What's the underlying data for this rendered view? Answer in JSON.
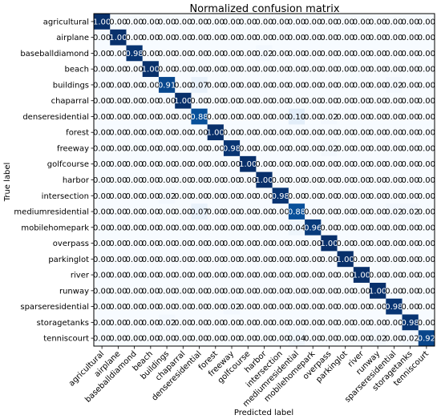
{
  "chart_data": {
    "type": "heatmap",
    "title": "Normalized confusion matrix",
    "xlabel": "Predicted label",
    "ylabel": "True label",
    "classes": [
      "agricultural",
      "airplane",
      "baseballdiamond",
      "beach",
      "buildings",
      "chaparral",
      "denseresidential",
      "forest",
      "freeway",
      "golfcourse",
      "harbor",
      "intersection",
      "mediumresidential",
      "mobilehomepark",
      "overpass",
      "parkinglot",
      "river",
      "runway",
      "sparseresidential",
      "storagetanks",
      "tenniscourt"
    ],
    "value_range": [
      0,
      1
    ],
    "colormap": "Blues",
    "matrix": [
      [
        1.0,
        0.0,
        0.0,
        0.0,
        0.0,
        0.0,
        0.0,
        0.0,
        0.0,
        0.0,
        0.0,
        0.0,
        0.0,
        0.0,
        0.0,
        0.0,
        0.0,
        0.0,
        0.0,
        0.0,
        0.0
      ],
      [
        0.0,
        1.0,
        0.0,
        0.0,
        0.0,
        0.0,
        0.0,
        0.0,
        0.0,
        0.0,
        0.0,
        0.0,
        0.0,
        0.0,
        0.0,
        0.0,
        0.0,
        0.0,
        0.0,
        0.0,
        0.0
      ],
      [
        0.0,
        0.0,
        0.98,
        0.0,
        0.0,
        0.0,
        0.0,
        0.0,
        0.0,
        0.0,
        0.02,
        0.0,
        0.0,
        0.0,
        0.0,
        0.0,
        0.0,
        0.0,
        0.0,
        0.0,
        0.0
      ],
      [
        0.0,
        0.0,
        0.0,
        1.0,
        0.0,
        0.0,
        0.0,
        0.0,
        0.0,
        0.0,
        0.0,
        0.0,
        0.0,
        0.0,
        0.0,
        0.0,
        0.0,
        0.0,
        0.0,
        0.0,
        0.0
      ],
      [
        0.0,
        0.0,
        0.0,
        0.0,
        0.91,
        0.0,
        0.07,
        0.0,
        0.0,
        0.0,
        0.0,
        0.0,
        0.0,
        0.0,
        0.0,
        0.0,
        0.0,
        0.0,
        0.02,
        0.0,
        0.0
      ],
      [
        0.0,
        0.0,
        0.0,
        0.0,
        0.0,
        1.0,
        0.0,
        0.0,
        0.0,
        0.0,
        0.0,
        0.0,
        0.0,
        0.0,
        0.0,
        0.0,
        0.0,
        0.0,
        0.0,
        0.0,
        0.0
      ],
      [
        0.0,
        0.0,
        0.0,
        0.0,
        0.0,
        0.0,
        0.88,
        0.0,
        0.0,
        0.0,
        0.0,
        0.0,
        0.1,
        0.0,
        0.02,
        0.0,
        0.0,
        0.0,
        0.0,
        0.0,
        0.0
      ],
      [
        0.0,
        0.0,
        0.0,
        0.0,
        0.0,
        0.0,
        0.0,
        1.0,
        0.0,
        0.0,
        0.0,
        0.0,
        0.0,
        0.0,
        0.0,
        0.0,
        0.0,
        0.0,
        0.0,
        0.0,
        0.0
      ],
      [
        0.0,
        0.0,
        0.0,
        0.0,
        0.0,
        0.0,
        0.0,
        0.0,
        0.98,
        0.0,
        0.0,
        0.0,
        0.0,
        0.0,
        0.02,
        0.0,
        0.0,
        0.0,
        0.0,
        0.0,
        0.0
      ],
      [
        0.0,
        0.0,
        0.0,
        0.0,
        0.0,
        0.0,
        0.0,
        0.0,
        0.0,
        1.0,
        0.0,
        0.0,
        0.0,
        0.0,
        0.0,
        0.0,
        0.0,
        0.0,
        0.0,
        0.0,
        0.0
      ],
      [
        0.0,
        0.0,
        0.0,
        0.0,
        0.0,
        0.0,
        0.0,
        0.0,
        0.0,
        0.0,
        1.0,
        0.0,
        0.0,
        0.0,
        0.0,
        0.0,
        0.0,
        0.0,
        0.0,
        0.0,
        0.0
      ],
      [
        0.0,
        0.0,
        0.0,
        0.0,
        0.02,
        0.0,
        0.0,
        0.0,
        0.0,
        0.0,
        0.0,
        0.98,
        0.0,
        0.0,
        0.0,
        0.0,
        0.0,
        0.0,
        0.0,
        0.0,
        0.0
      ],
      [
        0.0,
        0.0,
        0.0,
        0.0,
        0.0,
        0.0,
        0.07,
        0.0,
        0.0,
        0.0,
        0.0,
        0.0,
        0.88,
        0.0,
        0.0,
        0.0,
        0.0,
        0.0,
        0.02,
        0.02,
        0.0
      ],
      [
        0.0,
        0.0,
        0.0,
        0.0,
        0.0,
        0.0,
        0.0,
        0.0,
        0.0,
        0.0,
        0.0,
        0.0,
        0.04,
        0.96,
        0.0,
        0.0,
        0.0,
        0.0,
        0.0,
        0.0,
        0.0
      ],
      [
        0.0,
        0.0,
        0.0,
        0.0,
        0.0,
        0.0,
        0.0,
        0.0,
        0.0,
        0.0,
        0.0,
        0.0,
        0.0,
        0.0,
        1.0,
        0.0,
        0.0,
        0.0,
        0.0,
        0.0,
        0.0
      ],
      [
        0.0,
        0.0,
        0.0,
        0.0,
        0.0,
        0.0,
        0.0,
        0.0,
        0.0,
        0.0,
        0.0,
        0.0,
        0.0,
        0.0,
        0.0,
        1.0,
        0.0,
        0.0,
        0.0,
        0.0,
        0.0
      ],
      [
        0.0,
        0.0,
        0.0,
        0.0,
        0.0,
        0.0,
        0.0,
        0.0,
        0.0,
        0.0,
        0.0,
        0.0,
        0.0,
        0.0,
        0.0,
        0.0,
        1.0,
        0.0,
        0.0,
        0.0,
        0.0
      ],
      [
        0.0,
        0.0,
        0.0,
        0.0,
        0.0,
        0.0,
        0.0,
        0.0,
        0.0,
        0.0,
        0.0,
        0.0,
        0.0,
        0.0,
        0.0,
        0.0,
        0.0,
        1.0,
        0.0,
        0.0,
        0.0
      ],
      [
        0.0,
        0.0,
        0.0,
        0.0,
        0.0,
        0.0,
        0.0,
        0.0,
        0.02,
        0.0,
        0.0,
        0.0,
        0.0,
        0.0,
        0.0,
        0.0,
        0.0,
        0.0,
        0.98,
        0.0,
        0.0
      ],
      [
        0.0,
        0.0,
        0.0,
        0.0,
        0.02,
        0.0,
        0.0,
        0.0,
        0.0,
        0.0,
        0.0,
        0.0,
        0.0,
        0.0,
        0.0,
        0.0,
        0.0,
        0.0,
        0.0,
        0.98,
        0.0
      ],
      [
        0.0,
        0.0,
        0.0,
        0.0,
        0.0,
        0.0,
        0.0,
        0.0,
        0.0,
        0.0,
        0.0,
        0.0,
        0.04,
        0.0,
        0.0,
        0.0,
        0.0,
        0.02,
        0.0,
        0.02,
        0.92
      ]
    ]
  }
}
